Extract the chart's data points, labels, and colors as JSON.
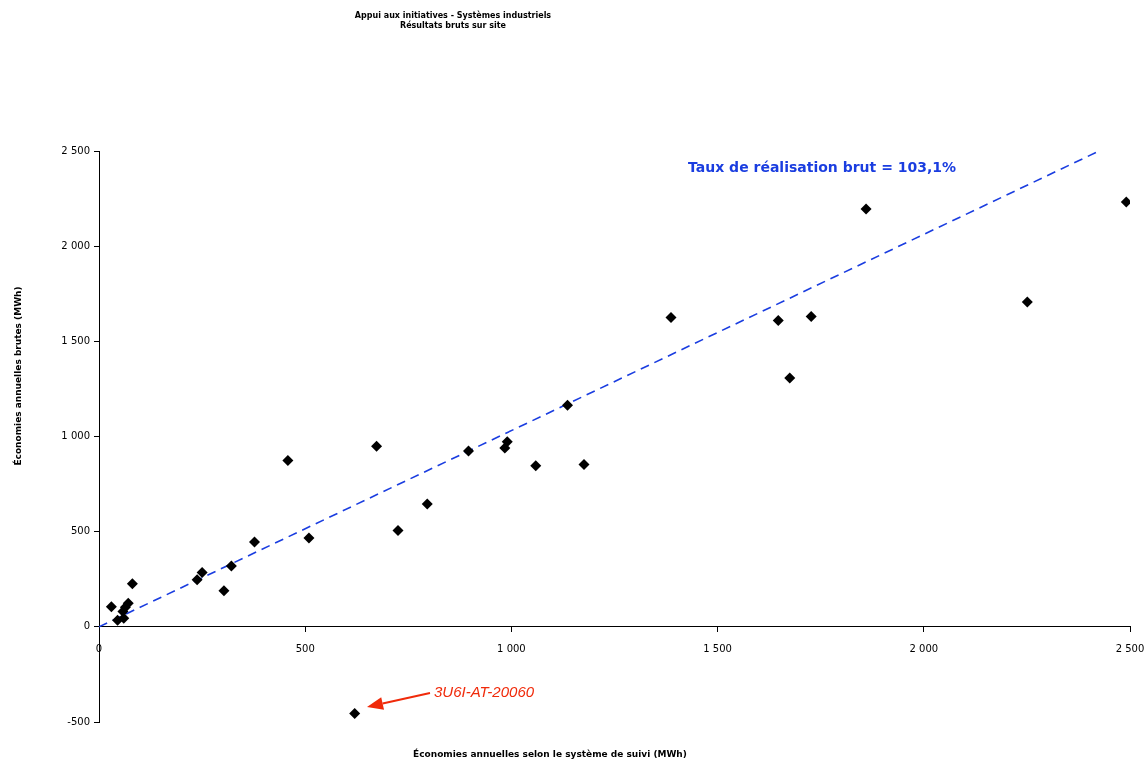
{
  "chart_data": {
    "type": "scatter",
    "title": "Appui aux initiatives - Systèmes industriels",
    "subtitle": "Résultats bruts sur site",
    "xlabel": "Économies annuelles selon le système de suivi (MWh)",
    "ylabel": "Économies annuelles brutes (MWh)",
    "xlim": [
      0,
      2500
    ],
    "xticks": [
      0,
      500,
      {
        "value": 1000,
        "label": "1 000"
      },
      {
        "value": 1500,
        "label": "1 500"
      },
      {
        "value": 2000,
        "label": "2 000"
      },
      {
        "value": 2500,
        "label": "2 500"
      }
    ],
    "ylim": [
      -500,
      2500
    ],
    "yticks": [
      -500,
      0,
      500,
      {
        "value": 1000,
        "label": "1 000"
      },
      {
        "value": 1500,
        "label": "1 500"
      },
      {
        "value": 2000,
        "label": "2 000"
      },
      {
        "value": 2500,
        "label": "2 500"
      }
    ],
    "grid": false,
    "marker": "diamond",
    "series": [
      {
        "type": "scatter",
        "color": "#000000",
        "x": [
          30,
          45,
          60,
          58,
          64,
          71,
          81,
          238,
          250,
          303,
          321,
          377,
          458,
          509,
          620,
          673,
          725,
          796,
          896,
          984,
          990,
          1059,
          1136,
          1176,
          1387,
          1647,
          1675,
          1727,
          1860,
          2251,
          2491
        ],
        "values": [
          105,
          35,
          45,
          80,
          103,
          124,
          226,
          247,
          285,
          189,
          320,
          446,
          874,
          467,
          -455,
          949,
          506,
          646,
          924,
          939,
          972,
          846,
          1164,
          853,
          1625,
          1609,
          1308,
          1630,
          2195,
          1707,
          2232
        ]
      },
      {
        "type": "line",
        "name": "Taux de réalisation brut = 103,1%",
        "color": "#1a3de0",
        "line_style": "dashed",
        "marker": "none",
        "x": [
          0,
          2425
        ],
        "values": [
          0,
          2500
        ]
      }
    ],
    "annotations": [
      "3U6I-AT-20060"
    ]
  }
}
